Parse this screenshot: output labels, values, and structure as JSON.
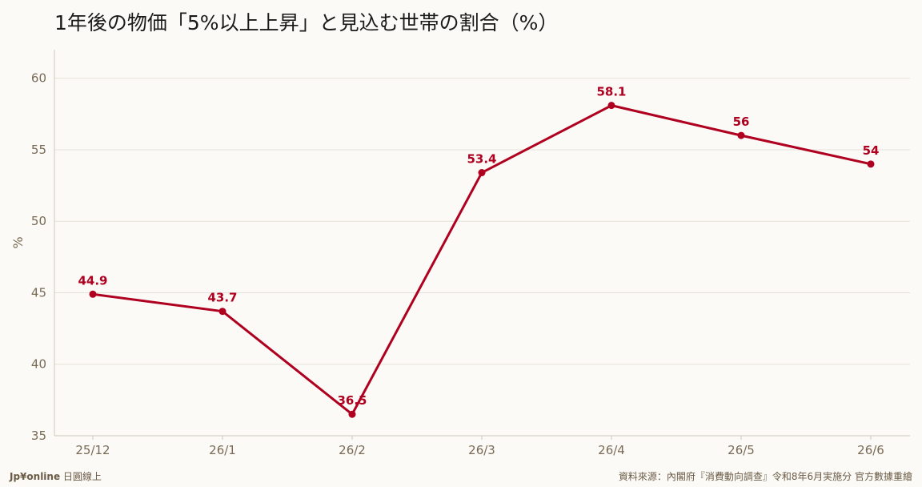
{
  "chart_data": {
    "type": "line",
    "title": "1年後の物価「5%以上上昇」と見込む世帯の割合（%）",
    "xlabel": "",
    "ylabel": "%",
    "categories": [
      "25/12",
      "26/1",
      "26/2",
      "26/3",
      "26/4",
      "26/5",
      "26/6"
    ],
    "series": [
      {
        "values": [
          44.9,
          43.7,
          36.5,
          53.4,
          58.1,
          56,
          54
        ]
      }
    ],
    "data_labels": [
      "44.9",
      "43.7",
      "36.5",
      "53.4",
      "58.1",
      "56",
      "54"
    ],
    "ylim": [
      35,
      62
    ],
    "yticks": [
      35,
      40,
      45,
      50,
      55,
      60
    ],
    "grid": true,
    "legend": "none",
    "colors": {
      "line": "#b00020",
      "grid": "#e6e1d8",
      "axis": "#cfc8bb",
      "text": "#7a6a55"
    }
  },
  "footer": {
    "brand_bold": "Jp¥online",
    "brand_rest": " 日圓線上",
    "source": "資料來源：內閣府『消費動向調查』令和8年6月実施分 官方數據重繪"
  }
}
